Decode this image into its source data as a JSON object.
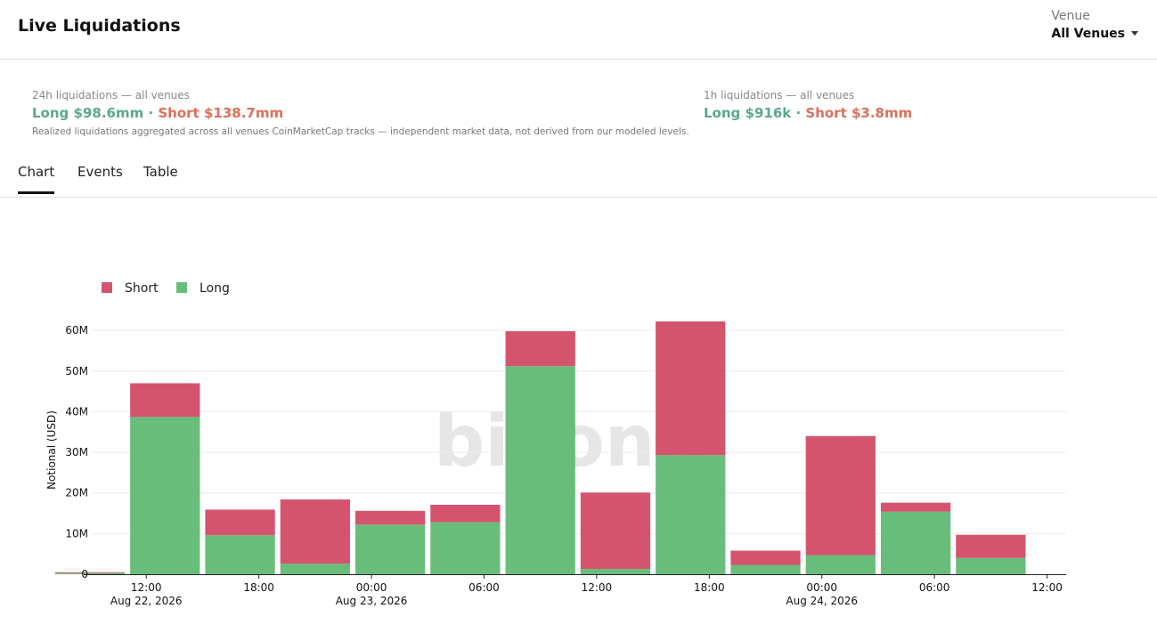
{
  "page": {
    "title": "Live Liquidations"
  },
  "venue": {
    "label": "Venue",
    "selected": "All Venues"
  },
  "stats": {
    "day": {
      "label": "24h liquidations — all venues",
      "long": "Long $98.6mm",
      "sep": " · ",
      "short": "Short $138.7mm",
      "note": "Realized liquidations aggregated across all venues CoinMarketCap tracks — independent market data, not derived from our modeled levels."
    },
    "hour": {
      "label": "1h liquidations — all venues",
      "long": "Long $916k",
      "sep": " · ",
      "short": "Short $3.8mm"
    }
  },
  "tabs": [
    {
      "label": "Chart",
      "active": true
    },
    {
      "label": "Events"
    },
    {
      "label": "Table"
    }
  ],
  "colors": {
    "short": "#d4546e",
    "long": "#69bd7a",
    "long_text": "#5aa987",
    "short_text": "#d9705a"
  },
  "chart_data": {
    "type": "bar",
    "stacked": true,
    "watermark": "biyond",
    "ylabel": "Notional (USD)",
    "ylim": [
      0,
      62
    ],
    "y_ticks": [
      "0",
      "10M",
      "20M",
      "30M",
      "40M",
      "50M",
      "60M"
    ],
    "y_tick_values": [
      0,
      10,
      20,
      30,
      40,
      50,
      60
    ],
    "y_unit": "millions USD",
    "legend_position": "top-left",
    "x_ticks": [
      {
        "hour": 12,
        "label": "12:00",
        "date": "Aug 22, 2026"
      },
      {
        "hour": 18,
        "label": "18:00"
      },
      {
        "hour": 24,
        "label": "00:00",
        "date": "Aug 23, 2026"
      },
      {
        "hour": 30,
        "label": "06:00"
      },
      {
        "hour": 36,
        "label": "12:00"
      },
      {
        "hour": 42,
        "label": "18:00"
      },
      {
        "hour": 48,
        "label": "00:00",
        "date": "Aug 24, 2026"
      },
      {
        "hour": 54,
        "label": "06:00"
      },
      {
        "hour": 60,
        "label": "12:00"
      }
    ],
    "x_hours": [
      9,
      13,
      17,
      21,
      25,
      29,
      33,
      37,
      41,
      45,
      49,
      53,
      57
    ],
    "bin_hours": 4,
    "series": [
      {
        "name": "Short",
        "values": [
          0.2,
          8.3,
          6.3,
          15.8,
          3.4,
          4.3,
          8.6,
          18.8,
          32.9,
          3.5,
          29.3,
          2.2,
          5.7
        ]
      },
      {
        "name": "Long",
        "values": [
          0.3,
          38.7,
          9.6,
          2.6,
          12.2,
          12.8,
          51.2,
          1.3,
          29.3,
          2.3,
          4.7,
          15.4,
          4.0
        ]
      }
    ]
  }
}
